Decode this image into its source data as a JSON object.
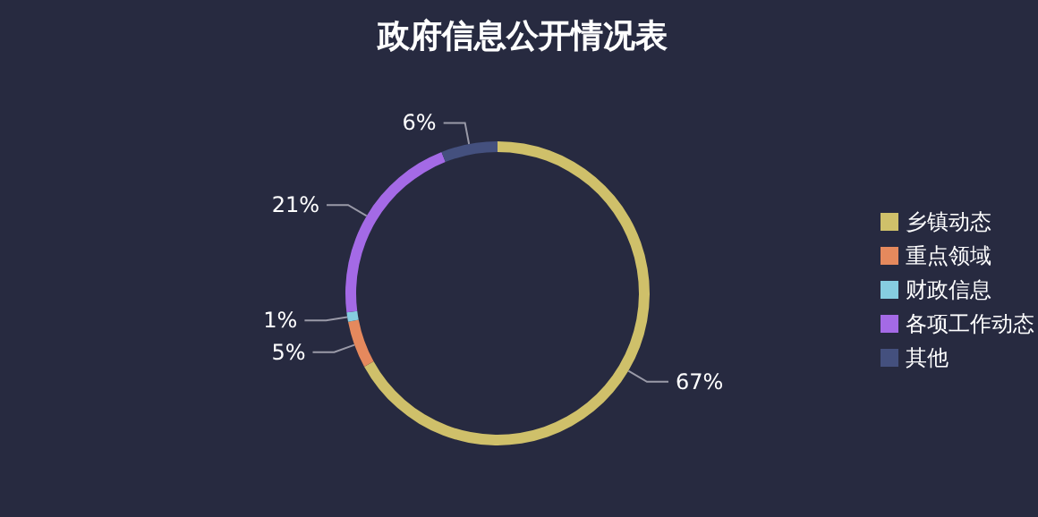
{
  "chart_data": {
    "type": "donut",
    "title": "政府信息公开情况表",
    "categories": [
      "乡镇动态",
      "重点领域",
      "财政信息",
      "各项工作动态",
      "其他"
    ],
    "values": [
      67,
      5,
      1,
      21,
      6
    ],
    "value_labels": [
      "67%",
      "5%",
      "1%",
      "21%",
      "6%"
    ],
    "colors": [
      "#cfc06a",
      "#e5895d",
      "#86cde0",
      "#a46ae6",
      "#44507e"
    ],
    "legend": "right"
  }
}
